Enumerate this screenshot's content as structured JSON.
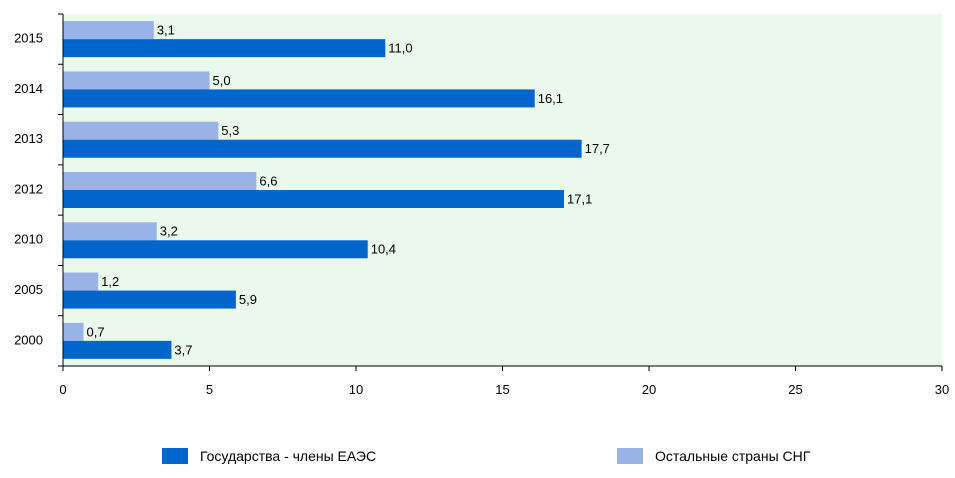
{
  "chart_data": {
    "type": "bar",
    "orientation": "horizontal",
    "categories": [
      "2015",
      "2014",
      "2013",
      "2012",
      "2010",
      "2005",
      "2000"
    ],
    "series": [
      {
        "name": "Государства - члены ЕАЭС",
        "values": [
          11.0,
          16.1,
          17.7,
          17.1,
          10.4,
          5.9,
          3.7
        ],
        "labels": [
          "11,0",
          "16,1",
          "17,7",
          "17,1",
          "10,4",
          "5,9",
          "3,7"
        ],
        "color": "#0066CC"
      },
      {
        "name": "Остальные страны СНГ",
        "values": [
          3.1,
          5.0,
          5.3,
          6.6,
          3.2,
          1.2,
          0.7
        ],
        "labels": [
          "3,1",
          "5,0",
          "5,3",
          "6,6",
          "3,2",
          "1,2",
          "0,7"
        ],
        "color": "#99B3E6"
      }
    ],
    "xlim": [
      0,
      30
    ],
    "xticks": [
      0,
      5,
      10,
      15,
      20,
      25,
      30
    ],
    "plot_background": "#EAF9EA",
    "grid": false,
    "legend_position": "bottom"
  }
}
